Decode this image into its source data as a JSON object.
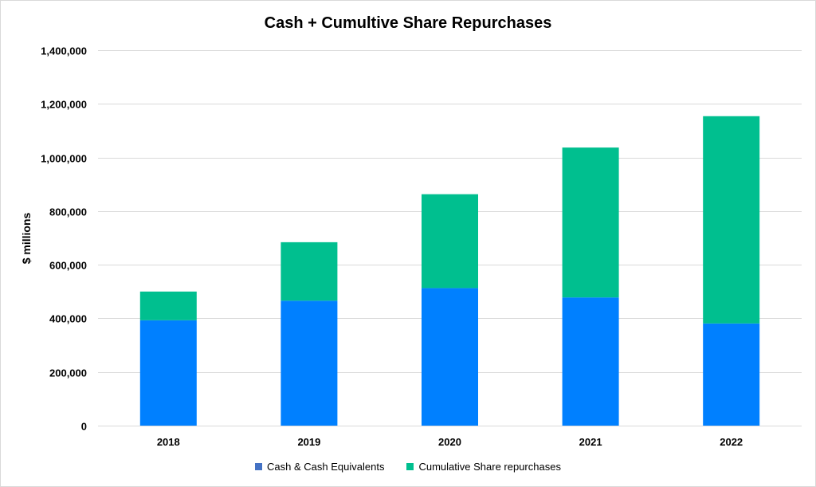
{
  "chart_data": {
    "type": "bar",
    "stacked": true,
    "title": "Cash + Cumultive Share Repurchases",
    "xlabel": "",
    "ylabel": "$ millions",
    "categories": [
      "2018",
      "2019",
      "2020",
      "2021",
      "2022"
    ],
    "series": [
      {
        "name": "Cash & Cash Equivalents",
        "color": "#0080ff",
        "legend_color": "#4472c4",
        "values": [
          393000,
          466000,
          513000,
          478000,
          381000
        ]
      },
      {
        "name": "Cumulative Share repurchases",
        "color": "#00bf8f",
        "legend_color": "#00bf8f",
        "values": [
          107000,
          218000,
          350000,
          559000,
          773000
        ]
      }
    ],
    "ylim": [
      0,
      1400000
    ],
    "yticks": [
      0,
      200000,
      400000,
      600000,
      800000,
      1000000,
      1200000,
      1400000
    ],
    "ytick_labels": [
      "0",
      "200,000",
      "400,000",
      "600,000",
      "800,000",
      "1,000,000",
      "1,200,000",
      "1,400,000"
    ],
    "grid": true,
    "legend_position": "bottom"
  }
}
